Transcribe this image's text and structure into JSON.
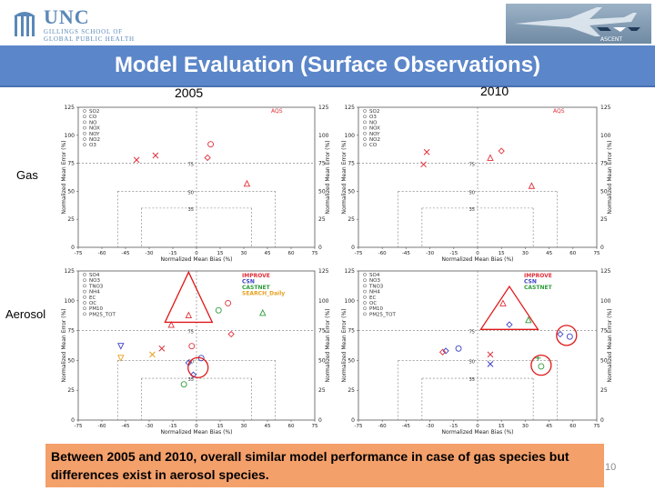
{
  "header": {
    "logo": {
      "title": "UNC",
      "subtitle_line1": "GILLINGS SCHOOL OF",
      "subtitle_line2": "GLOBAL PUBLIC HEALTH"
    },
    "ascent_logo_text": "ASCENT"
  },
  "slide": {
    "title": "Model Evaluation (Surface Observations)",
    "year_left": "2005",
    "year_right": "2010",
    "row_gas": "Gas",
    "row_aerosol": "Aerosol",
    "note": "Between 2005 and 2010, overall similar model performance in case of gas species but differences exist in aerosol species.",
    "page_number": "10"
  },
  "axes": {
    "xlabel": "Normalized Mean Bias (%)",
    "ylabel": "Normalized Mean Error (%)",
    "xticks": [
      "-75",
      "-60",
      "-45",
      "-30",
      "-15",
      "0",
      "15",
      "30",
      "45",
      "60",
      "75"
    ],
    "yticks": [
      "0",
      "25",
      "50",
      "75",
      "100",
      "125"
    ],
    "inner_labels": [
      "35",
      "50",
      "75"
    ]
  },
  "colors": {
    "red": "#e0303a",
    "blue": "#3b3fc4",
    "green": "#2e9e3c",
    "orange": "#e6a020",
    "gray": "#5a5a5a"
  },
  "chart_data": [
    {
      "type": "scatter",
      "panel": "gas-2005",
      "network_label": "AQS",
      "legend": [
        "SO2",
        "CO",
        "NO",
        "NOX",
        "NOY",
        "NO2",
        "O3"
      ],
      "xlim": [
        -75,
        75
      ],
      "ylim": [
        0,
        125
      ],
      "points": [
        {
          "species": "SO2",
          "x": -38,
          "y": 78,
          "marker": "x",
          "color": "red"
        },
        {
          "species": "CO",
          "x": -26,
          "y": 82,
          "marker": "x",
          "color": "red"
        },
        {
          "species": "NO",
          "x": 7,
          "y": 80,
          "marker": "diamond",
          "color": "red"
        },
        {
          "species": "NOX",
          "x": 9,
          "y": 92,
          "marker": "circle",
          "color": "red"
        },
        {
          "species": "O3",
          "x": 32,
          "y": 57,
          "marker": "triangle",
          "color": "red"
        }
      ]
    },
    {
      "type": "scatter",
      "panel": "gas-2010",
      "network_label": "AQS",
      "legend": [
        "SO2",
        "O3",
        "NO",
        "NOX",
        "NOY",
        "NO2",
        "CO"
      ],
      "xlim": [
        -75,
        75
      ],
      "ylim": [
        0,
        125
      ],
      "points": [
        {
          "species": "SO2",
          "x": -34,
          "y": 74,
          "marker": "x",
          "color": "red"
        },
        {
          "species": "CO",
          "x": -32,
          "y": 85,
          "marker": "x",
          "color": "red"
        },
        {
          "species": "NO",
          "x": 8,
          "y": 80,
          "marker": "triangle",
          "color": "red"
        },
        {
          "species": "NOX",
          "x": 15,
          "y": 86,
          "marker": "diamond",
          "color": "red"
        },
        {
          "species": "O3",
          "x": 34,
          "y": 55,
          "marker": "triangle",
          "color": "red"
        }
      ]
    },
    {
      "type": "scatter",
      "panel": "aerosol-2005",
      "networks": [
        "IMPROVE",
        "CSN",
        "CASTNET",
        "SEARCH_Daily"
      ],
      "legend": [
        "SO4",
        "NO3",
        "TNO3",
        "NH4",
        "EC",
        "OC",
        "PM10",
        "PM25_TOT"
      ],
      "xlim": [
        -75,
        75
      ],
      "ylim": [
        0,
        125
      ],
      "points": [
        {
          "species": "NO3",
          "x": -5,
          "y": 88,
          "marker": "triangle",
          "color": "red"
        },
        {
          "species": "NO3",
          "x": -16,
          "y": 80,
          "marker": "triangle",
          "color": "red"
        },
        {
          "species": "NH4",
          "x": 14,
          "y": 92,
          "marker": "circle",
          "color": "green"
        },
        {
          "species": "SO4",
          "x": 20,
          "y": 98,
          "marker": "circle",
          "color": "red"
        },
        {
          "species": "TNO3",
          "x": 42,
          "y": 90,
          "marker": "triangle",
          "color": "green"
        },
        {
          "species": "EC",
          "x": -48,
          "y": 62,
          "marker": "triangle-down",
          "color": "blue"
        },
        {
          "species": "OC",
          "x": -48,
          "y": 52,
          "marker": "triangle-down",
          "color": "orange"
        },
        {
          "species": "PM10",
          "x": -22,
          "y": 60,
          "marker": "x",
          "color": "red"
        },
        {
          "species": "PM25_TOT",
          "x": -28,
          "y": 55,
          "marker": "x",
          "color": "orange"
        },
        {
          "species": "SO4",
          "x": -3,
          "y": 62,
          "marker": "circle",
          "color": "red"
        },
        {
          "species": "NH4",
          "x": 3,
          "y": 52,
          "marker": "circle",
          "color": "blue"
        },
        {
          "species": "NO3",
          "x": 22,
          "y": 72,
          "marker": "diamond",
          "color": "red"
        },
        {
          "species": "EC",
          "x": -5,
          "y": 48,
          "marker": "diamond",
          "color": "blue"
        },
        {
          "species": "OC",
          "x": -2,
          "y": 38,
          "marker": "diamond",
          "color": "blue"
        },
        {
          "species": "TNO3",
          "x": -8,
          "y": 30,
          "marker": "circle",
          "color": "green"
        }
      ]
    },
    {
      "type": "scatter",
      "panel": "aerosol-2010",
      "networks": [
        "IMPROVE",
        "CSN",
        "CASTNET"
      ],
      "legend": [
        "SO4",
        "NO3",
        "TNO3",
        "NH4",
        "EC",
        "OC",
        "PM10",
        "PM25_TOT"
      ],
      "xlim": [
        -75,
        75
      ],
      "ylim": [
        0,
        125
      ],
      "points": [
        {
          "species": "NO3",
          "x": 16,
          "y": 98,
          "marker": "triangle",
          "color": "red"
        },
        {
          "species": "TNO3",
          "x": 32,
          "y": 84,
          "marker": "triangle",
          "color": "green"
        },
        {
          "species": "EC",
          "x": 20,
          "y": 80,
          "marker": "diamond",
          "color": "blue"
        },
        {
          "species": "NH4",
          "x": 52,
          "y": 72,
          "marker": "diamond",
          "color": "blue"
        },
        {
          "species": "NH4",
          "x": 58,
          "y": 70,
          "marker": "circle",
          "color": "blue"
        },
        {
          "species": "EC",
          "x": -20,
          "y": 58,
          "marker": "diamond",
          "color": "blue"
        },
        {
          "species": "OC",
          "x": -22,
          "y": 57,
          "marker": "diamond",
          "color": "red"
        },
        {
          "species": "PM25_TOT",
          "x": -12,
          "y": 60,
          "marker": "circle",
          "color": "blue"
        },
        {
          "species": "PM10",
          "x": 8,
          "y": 55,
          "marker": "x",
          "color": "red"
        },
        {
          "species": "PM10",
          "x": 8,
          "y": 47,
          "marker": "x",
          "color": "blue"
        },
        {
          "species": "TNO3",
          "x": 38,
          "y": 52,
          "marker": "plus",
          "color": "green"
        },
        {
          "species": "SO4",
          "x": 40,
          "y": 45,
          "marker": "circle",
          "color": "green"
        }
      ]
    }
  ]
}
